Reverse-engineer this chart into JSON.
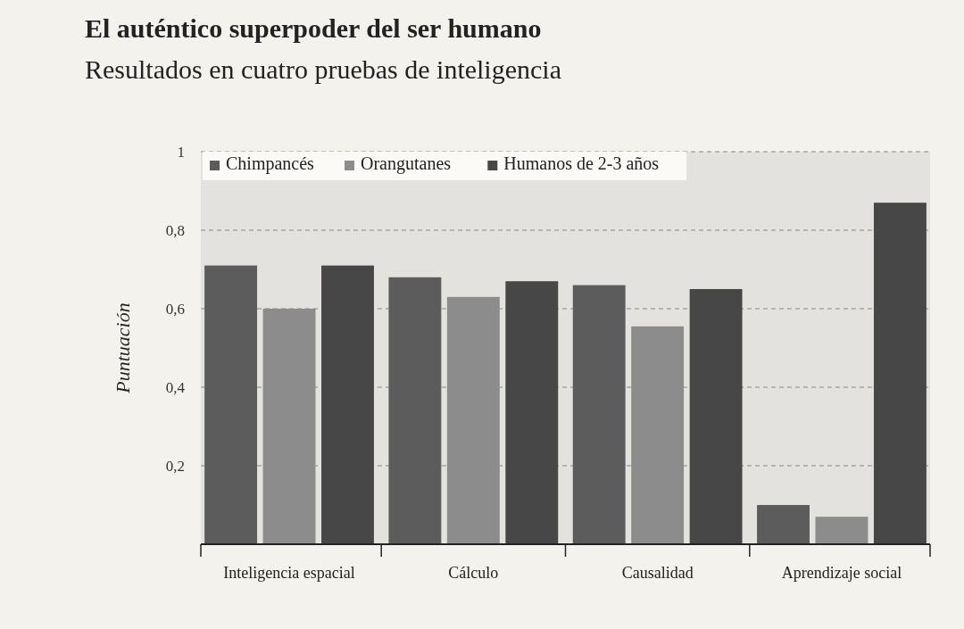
{
  "chart_data": {
    "type": "bar",
    "title": "El auténtico superpoder del ser humano",
    "subtitle": "Resultados en cuatro pruebas de inteligencia",
    "ylabel": "Puntuación",
    "categories": [
      "Inteligencia espacial",
      "Cálculo",
      "Causalidad",
      "Aprendizaje social"
    ],
    "series": [
      {
        "name": "Chimpancés",
        "color": "#5c5c5c",
        "values": [
          0.71,
          0.68,
          0.66,
          0.1
        ]
      },
      {
        "name": "Orangutanes",
        "color": "#8c8c8c",
        "values": [
          0.6,
          0.63,
          0.555,
          0.07
        ]
      },
      {
        "name": "Humanos de 2-3 años",
        "color": "#474747",
        "values": [
          0.71,
          0.67,
          0.65,
          0.87
        ]
      }
    ],
    "ylim": [
      0,
      1
    ],
    "yticks": [
      {
        "value": 0.2,
        "label": "0,2"
      },
      {
        "value": 0.4,
        "label": "0,4"
      },
      {
        "value": 0.6,
        "label": "0,6"
      },
      {
        "value": 0.8,
        "label": "0,8"
      },
      1
    ],
    "grid": "y",
    "legend": "top left"
  }
}
